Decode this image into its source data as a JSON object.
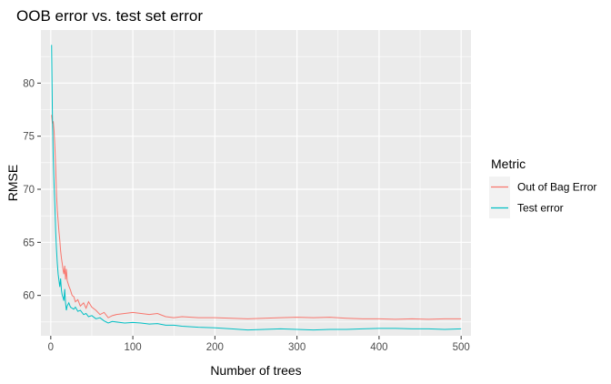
{
  "chart_data": {
    "type": "line",
    "title": "OOB error vs. test set error",
    "xlabel": "Number of trees",
    "ylabel": "RMSE",
    "xlim": [
      -12,
      512
    ],
    "ylim": [
      56.2,
      85.0
    ],
    "xticks": [
      0,
      100,
      200,
      300,
      400,
      500
    ],
    "yticks": [
      60,
      65,
      70,
      75,
      80
    ],
    "grid": true,
    "legend_title": "Metric",
    "legend_position": "right",
    "series": [
      {
        "name": "Out of Bag Error",
        "color": "#F8766D",
        "points": [
          [
            1,
            77.0
          ],
          [
            2,
            76.2
          ],
          [
            3,
            76.4
          ],
          [
            4,
            75.5
          ],
          [
            5,
            74.0
          ],
          [
            6,
            72.0
          ],
          [
            7,
            69.5
          ],
          [
            8,
            68.0
          ],
          [
            9,
            67.0
          ],
          [
            10,
            66.0
          ],
          [
            11,
            65.2
          ],
          [
            12,
            64.2
          ],
          [
            13,
            63.5
          ],
          [
            14,
            63.0
          ],
          [
            15,
            62.4
          ],
          [
            16,
            62.0
          ],
          [
            17,
            62.8
          ],
          [
            18,
            61.5
          ],
          [
            19,
            62.5
          ],
          [
            20,
            61.4
          ],
          [
            22,
            60.9
          ],
          [
            24,
            60.5
          ],
          [
            26,
            60.0
          ],
          [
            28,
            59.9
          ],
          [
            30,
            59.4
          ],
          [
            33,
            59.6
          ],
          [
            36,
            59.0
          ],
          [
            40,
            59.3
          ],
          [
            43,
            58.8
          ],
          [
            46,
            59.4
          ],
          [
            50,
            58.9
          ],
          [
            55,
            58.6
          ],
          [
            60,
            58.2
          ],
          [
            65,
            58.4
          ],
          [
            70,
            57.9
          ],
          [
            75,
            58.1
          ],
          [
            80,
            58.2
          ],
          [
            90,
            58.3
          ],
          [
            100,
            58.4
          ],
          [
            110,
            58.3
          ],
          [
            120,
            58.2
          ],
          [
            130,
            58.3
          ],
          [
            140,
            58.0
          ],
          [
            150,
            57.9
          ],
          [
            160,
            58.0
          ],
          [
            180,
            57.9
          ],
          [
            200,
            57.9
          ],
          [
            220,
            57.85
          ],
          [
            240,
            57.8
          ],
          [
            260,
            57.85
          ],
          [
            280,
            57.9
          ],
          [
            300,
            57.95
          ],
          [
            320,
            57.9
          ],
          [
            340,
            57.95
          ],
          [
            360,
            57.85
          ],
          [
            380,
            57.8
          ],
          [
            400,
            57.8
          ],
          [
            420,
            57.75
          ],
          [
            440,
            57.8
          ],
          [
            460,
            57.75
          ],
          [
            480,
            57.8
          ],
          [
            500,
            57.8
          ]
        ]
      },
      {
        "name": "Test error",
        "color": "#00BFC4",
        "points": [
          [
            1,
            83.6
          ],
          [
            2,
            77.0
          ],
          [
            3,
            73.0
          ],
          [
            4,
            70.5
          ],
          [
            5,
            68.5
          ],
          [
            6,
            66.0
          ],
          [
            7,
            64.3
          ],
          [
            8,
            63.0
          ],
          [
            9,
            62.0
          ],
          [
            10,
            61.4
          ],
          [
            11,
            60.8
          ],
          [
            12,
            61.6
          ],
          [
            13,
            60.5
          ],
          [
            14,
            60.0
          ],
          [
            15,
            59.8
          ],
          [
            16,
            59.5
          ],
          [
            17,
            60.6
          ],
          [
            18,
            59.3
          ],
          [
            19,
            58.6
          ],
          [
            20,
            59.0
          ],
          [
            22,
            59.3
          ],
          [
            24,
            58.9
          ],
          [
            26,
            58.8
          ],
          [
            28,
            58.7
          ],
          [
            30,
            58.9
          ],
          [
            33,
            58.5
          ],
          [
            36,
            58.6
          ],
          [
            40,
            58.2
          ],
          [
            43,
            58.3
          ],
          [
            46,
            58.0
          ],
          [
            50,
            58.1
          ],
          [
            55,
            57.8
          ],
          [
            60,
            57.9
          ],
          [
            65,
            57.6
          ],
          [
            70,
            57.4
          ],
          [
            75,
            57.55
          ],
          [
            80,
            57.5
          ],
          [
            90,
            57.4
          ],
          [
            100,
            57.45
          ],
          [
            110,
            57.4
          ],
          [
            120,
            57.3
          ],
          [
            130,
            57.35
          ],
          [
            140,
            57.2
          ],
          [
            150,
            57.2
          ],
          [
            160,
            57.1
          ],
          [
            180,
            57.0
          ],
          [
            200,
            56.95
          ],
          [
            220,
            56.85
          ],
          [
            240,
            56.75
          ],
          [
            260,
            56.8
          ],
          [
            280,
            56.85
          ],
          [
            300,
            56.8
          ],
          [
            320,
            56.75
          ],
          [
            340,
            56.8
          ],
          [
            360,
            56.8
          ],
          [
            380,
            56.85
          ],
          [
            400,
            56.9
          ],
          [
            420,
            56.9
          ],
          [
            440,
            56.85
          ],
          [
            460,
            56.85
          ],
          [
            480,
            56.8
          ],
          [
            500,
            56.85
          ]
        ]
      }
    ]
  }
}
